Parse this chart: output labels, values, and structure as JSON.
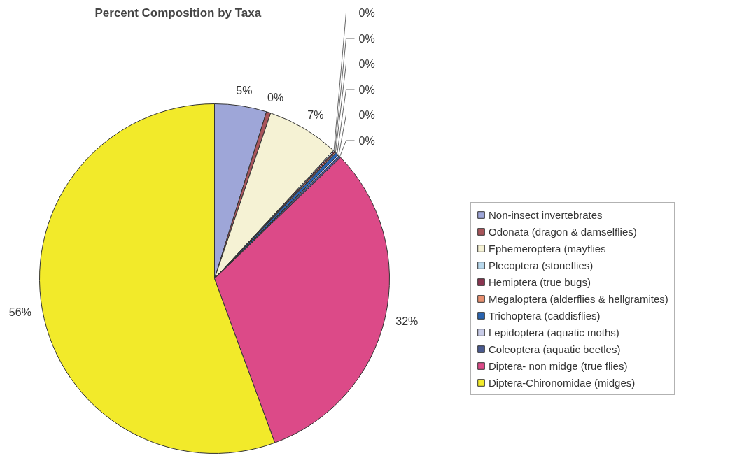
{
  "chart_data": {
    "type": "pie",
    "title": "Percent Composition by Taxa",
    "categories": [
      "Non-insect invertebrates",
      "Odonata (dragon & damselflies)",
      "Ephemeroptera (mayflies",
      "Plecoptera (stoneflies)",
      "Hemiptera (true bugs)",
      "Megaloptera (alderflies & hellgramites)",
      "Trichoptera (caddisflies)",
      "Lepidoptera (aquatic moths)",
      "Coleoptera (aquatic beetles)",
      "Diptera- non midge (true flies)",
      "Diptera-Chironomidae (midges)"
    ],
    "values": [
      4.8,
      0.4,
      6.7,
      0.1,
      0.1,
      0.1,
      0.3,
      0.1,
      0.2,
      31.6,
      55.6
    ],
    "value_labels": [
      "5%",
      "0%",
      "7%",
      "0%",
      "0%",
      "0%",
      "0%",
      "0%",
      "0%",
      "32%",
      "56%"
    ],
    "colors": [
      "#9ea6d8",
      "#a8555a",
      "#f5f2d4",
      "#b8d8ec",
      "#8a3550",
      "#e89070",
      "#2a64b0",
      "#c8cce8",
      "#4a5a90",
      "#dc4a88",
      "#f2ea2a"
    ],
    "legend": "right"
  }
}
